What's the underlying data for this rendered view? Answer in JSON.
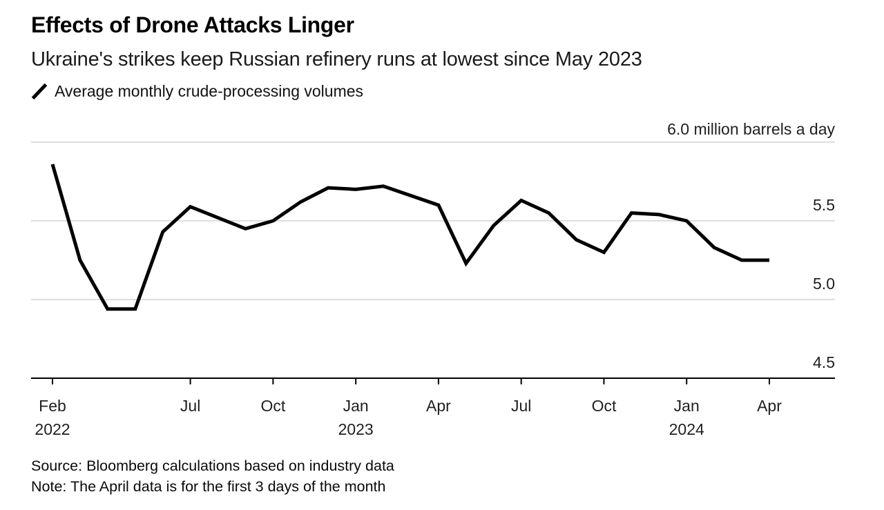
{
  "header": {
    "title": "Effects of Drone Attacks Linger",
    "subtitle": "Ukraine's strikes keep Russian refinery runs at lowest since May 2023"
  },
  "legend": {
    "label": "Average monthly crude-processing volumes"
  },
  "footer": {
    "source": "Source: Bloomberg calculations based on industry data",
    "note": "Note: The April data is for the first 3 days of the month"
  },
  "colors": {
    "line": "#000000",
    "gridline": "#dedede",
    "axis": "#000000",
    "label_text": "#1f1f1f",
    "background": "#ffffff"
  },
  "chart_data": {
    "type": "line",
    "title": "Effects of Drone Attacks Linger",
    "subtitle": "Ukraine's strikes keep Russian refinery runs at lowest since May 2023",
    "ylabel": "million barrels a day",
    "xlabel": "",
    "grid": "horizontal",
    "legend_position": "top-left",
    "x": [
      "Feb 2022",
      "Mar 2022",
      "Apr 2022",
      "May 2022",
      "Jun 2022",
      "Jul 2022",
      "Aug 2022",
      "Sep 2022",
      "Oct 2022",
      "Nov 2022",
      "Dec 2022",
      "Jan 2023",
      "Feb 2023",
      "Mar 2023",
      "Apr 2023",
      "May 2023",
      "Jun 2023",
      "Jul 2023",
      "Aug 2023",
      "Sep 2023",
      "Oct 2023",
      "Nov 2023",
      "Dec 2023",
      "Jan 2024",
      "Feb 2024",
      "Mar 2024",
      "Apr 2024"
    ],
    "series": [
      {
        "name": "Average monthly crude-processing volumes",
        "color": "#000000",
        "values": [
          5.86,
          5.25,
          4.94,
          4.94,
          5.43,
          5.59,
          5.52,
          5.45,
          5.5,
          5.62,
          5.71,
          5.7,
          5.72,
          5.66,
          5.6,
          5.23,
          5.47,
          5.63,
          5.55,
          5.38,
          5.3,
          5.55,
          5.54,
          5.5,
          5.33,
          5.25,
          5.25
        ]
      }
    ],
    "y_axis": {
      "min": 4.5,
      "max": 6.0,
      "step": 0.5,
      "side": "right",
      "tick_labels": [
        "4.5",
        "5.0",
        "5.5"
      ],
      "top_label": "6.0 million barrels a day",
      "gridline_values": [
        5.0,
        5.5,
        6.0
      ]
    },
    "x_ticks": [
      {
        "index": 0,
        "label": "Feb",
        "year": "2022"
      },
      {
        "index": 5,
        "label": "Jul"
      },
      {
        "index": 8,
        "label": "Oct"
      },
      {
        "index": 11,
        "label": "Jan",
        "year": "2023"
      },
      {
        "index": 14,
        "label": "Apr"
      },
      {
        "index": 17,
        "label": "Jul"
      },
      {
        "index": 20,
        "label": "Oct"
      },
      {
        "index": 23,
        "label": "Jan",
        "year": "2024"
      },
      {
        "index": 26,
        "label": "Apr"
      }
    ]
  }
}
